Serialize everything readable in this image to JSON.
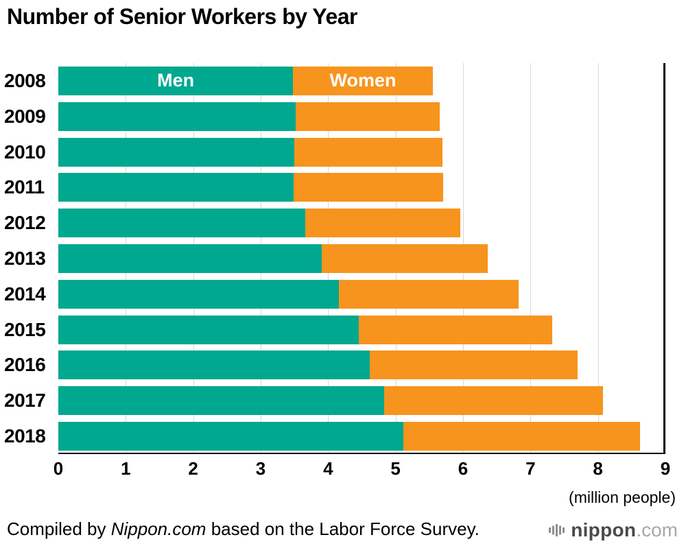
{
  "title": "Number of Senior Workers by Year",
  "chart_data": {
    "type": "bar",
    "orientation": "horizontal",
    "stacked": true,
    "title": "Number of Senior Workers by Year",
    "categories": [
      "2008",
      "2009",
      "2010",
      "2011",
      "2012",
      "2013",
      "2014",
      "2015",
      "2016",
      "2017",
      "2018"
    ],
    "series": [
      {
        "name": "Men",
        "color": "#00a88f",
        "values": [
          3.48,
          3.52,
          3.5,
          3.49,
          3.66,
          3.9,
          4.16,
          4.45,
          4.62,
          4.83,
          5.12
        ]
      },
      {
        "name": "Women",
        "color": "#f7941e",
        "values": [
          2.07,
          2.13,
          2.2,
          2.22,
          2.3,
          2.47,
          2.66,
          2.87,
          3.08,
          3.24,
          3.5
        ]
      }
    ],
    "totals": [
      5.55,
      5.65,
      5.7,
      5.71,
      5.96,
      6.37,
      6.82,
      7.32,
      7.7,
      8.07,
      8.62
    ],
    "xlim": [
      0,
      9
    ],
    "x_ticks": [
      0,
      1,
      2,
      3,
      4,
      5,
      6,
      7,
      8,
      9
    ],
    "unit_label": "(million people)",
    "grid": true,
    "legend_position": "inside-first-bar"
  },
  "colors": {
    "men": "#00a88f",
    "women": "#f7941e",
    "gridline": "#d8d8d8",
    "axis": "#000000"
  },
  "footer": {
    "source_prefix": "Compiled by ",
    "source_name": "Nippon.com",
    "source_suffix": " based on the Labor Force Survey.",
    "logo_text": "nippon",
    "logo_suffix": ".com"
  }
}
